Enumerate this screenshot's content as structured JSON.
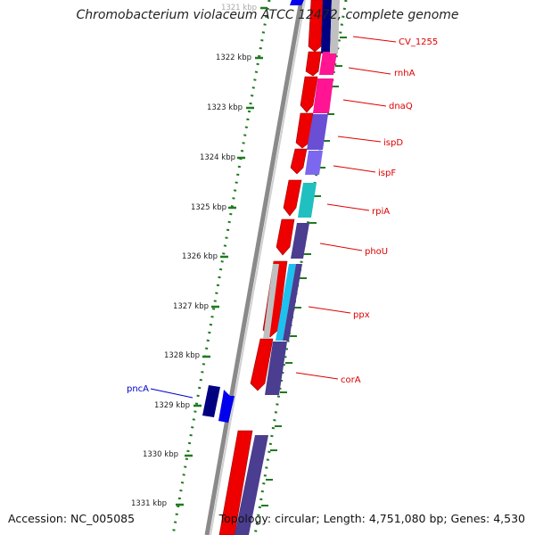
{
  "title": "Chromobacterium violaceum ATCC 12472, complete genome",
  "footer": {
    "accession": "Accession: NC_005085",
    "summary": "Topology: circular; Length: 4,751,080 bp; Genes: 4,530"
  },
  "colors": {
    "backbone": "#8a8a8a",
    "dots": "#1f7a1f",
    "tick": "#1f7a1f",
    "label_red": "#dd0000",
    "label_blue": "#0000cc",
    "ring1_forward": "#ee0000",
    "ring3_reverse": "#0000ee"
  },
  "scale_labels": [
    {
      "kbp": 1321,
      "text": "1321 kbp"
    },
    {
      "kbp": 1322,
      "text": "1322 kbp"
    },
    {
      "kbp": 1323,
      "text": "1323 kbp"
    },
    {
      "kbp": 1324,
      "text": "1324 kbp"
    },
    {
      "kbp": 1325,
      "text": "1325 kbp"
    },
    {
      "kbp": 1326,
      "text": "1326 kbp"
    },
    {
      "kbp": 1327,
      "text": "1327 kbp"
    },
    {
      "kbp": 1328,
      "text": "1328 kbp"
    },
    {
      "kbp": 1329,
      "text": "1329 kbp"
    },
    {
      "kbp": 1330,
      "text": "1330 kbp"
    },
    {
      "kbp": 1331,
      "text": "1331 kbp"
    }
  ],
  "gene_labels": [
    {
      "text": "CV_1255",
      "side": "right",
      "color": "#dd0000"
    },
    {
      "text": "rnhA",
      "side": "right",
      "color": "#dd0000"
    },
    {
      "text": "dnaQ",
      "side": "right",
      "color": "#dd0000"
    },
    {
      "text": "ispD",
      "side": "right",
      "color": "#dd0000"
    },
    {
      "text": "ispF",
      "side": "right",
      "color": "#dd0000"
    },
    {
      "text": "rpiA",
      "side": "right",
      "color": "#dd0000"
    },
    {
      "text": "phoU",
      "side": "right",
      "color": "#dd0000"
    },
    {
      "text": "ppx",
      "side": "right",
      "color": "#dd0000"
    },
    {
      "text": "corA",
      "side": "right",
      "color": "#dd0000"
    },
    {
      "text": "pncA",
      "side": "left",
      "color": "#0000cc"
    }
  ]
}
